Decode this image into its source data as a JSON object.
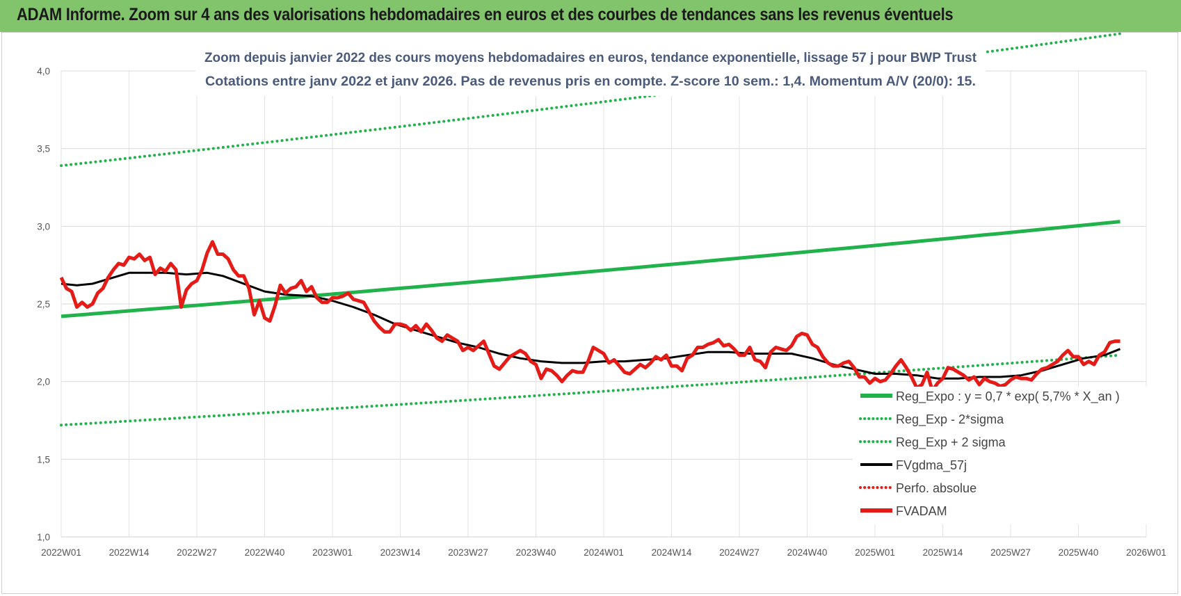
{
  "header": {
    "title": "ADAM Informe. Zoom sur 4 ans des valorisations hebdomadaires en euros et des courbes de tendances sans les revenus éventuels"
  },
  "chart_data": {
    "type": "line",
    "subtitle_line1": "Zoom depuis janvier 2022 des cours moyens hebdomadaires en euros, tendance exponentielle, lissage 57 j pour BWP Trust",
    "subtitle_line2": "Cotations entre janv 2022 et janv 2026. Pas de revenus pris en compte. Z-score 10 sem.: 1,4. Momentum A/V (20/0): 15.",
    "ylim": [
      1.0,
      4.0
    ],
    "y_ticks": [
      "1,0",
      "1,5",
      "2,0",
      "2,5",
      "3,0",
      "3,5",
      "4,0"
    ],
    "x_ticks": [
      "2022W01",
      "2022W14",
      "2022W27",
      "2022W40",
      "2023W01",
      "2023W14",
      "2023W27",
      "2023W40",
      "2024W01",
      "2024W14",
      "2024W27",
      "2024W40",
      "2025W01",
      "2025W14",
      "2025W27",
      "2025W40",
      "2026W01"
    ],
    "grid": true,
    "legend_position": "right",
    "series": [
      {
        "name": "Reg_Expo : y = 0,7 * exp( 5,7% *  X_an )",
        "color": "#22b24c",
        "style": "solid",
        "start": 2.42,
        "end": 3.03
      },
      {
        "name": "Reg_Exp - 2*sigma",
        "color": "#22b24c",
        "style": "dotted",
        "start": 1.72,
        "end": 2.17
      },
      {
        "name": "Reg_Exp + 2 sigma",
        "color": "#22b24c",
        "style": "dotted",
        "start": 3.39,
        "end": 4.24
      },
      {
        "name": "FVgdma_57j",
        "color": "#000000",
        "style": "solid",
        "points": [
          [
            0,
            2.63
          ],
          [
            3,
            2.62
          ],
          [
            6,
            2.63
          ],
          [
            9,
            2.66
          ],
          [
            13,
            2.7
          ],
          [
            20,
            2.7
          ],
          [
            24,
            2.69
          ],
          [
            28,
            2.7
          ],
          [
            31,
            2.68
          ],
          [
            35,
            2.63
          ],
          [
            39,
            2.58
          ],
          [
            43,
            2.56
          ],
          [
            48,
            2.55
          ],
          [
            52,
            2.52
          ],
          [
            56,
            2.48
          ],
          [
            60,
            2.43
          ],
          [
            64,
            2.37
          ],
          [
            68,
            2.33
          ],
          [
            72,
            2.29
          ],
          [
            76,
            2.25
          ],
          [
            80,
            2.22
          ],
          [
            84,
            2.18
          ],
          [
            88,
            2.15
          ],
          [
            92,
            2.13
          ],
          [
            96,
            2.12
          ],
          [
            100,
            2.12
          ],
          [
            104,
            2.13
          ],
          [
            108,
            2.13
          ],
          [
            112,
            2.14
          ],
          [
            116,
            2.15
          ],
          [
            120,
            2.17
          ],
          [
            124,
            2.19
          ],
          [
            128,
            2.19
          ],
          [
            132,
            2.18
          ],
          [
            136,
            2.18
          ],
          [
            140,
            2.18
          ],
          [
            144,
            2.15
          ],
          [
            148,
            2.11
          ],
          [
            152,
            2.08
          ],
          [
            156,
            2.05
          ],
          [
            160,
            2.05
          ],
          [
            164,
            2.04
          ],
          [
            168,
            2.02
          ],
          [
            172,
            2.02
          ],
          [
            176,
            2.03
          ],
          [
            180,
            2.03
          ],
          [
            184,
            2.04
          ],
          [
            188,
            2.07
          ],
          [
            192,
            2.11
          ],
          [
            196,
            2.15
          ],
          [
            200,
            2.17
          ],
          [
            203,
            2.21
          ]
        ]
      },
      {
        "name": "Perfo. absolue",
        "color": "#e41b17",
        "style": "dotted",
        "points": []
      },
      {
        "name": "FVADAM",
        "color": "#e41b17",
        "style": "solid",
        "points": [
          [
            0,
            2.67
          ],
          [
            1,
            2.6
          ],
          [
            2,
            2.58
          ],
          [
            3,
            2.48
          ],
          [
            4,
            2.51
          ],
          [
            5,
            2.48
          ],
          [
            6,
            2.5
          ],
          [
            7,
            2.57
          ],
          [
            8,
            2.6
          ],
          [
            9,
            2.67
          ],
          [
            10,
            2.72
          ],
          [
            11,
            2.76
          ],
          [
            12,
            2.75
          ],
          [
            13,
            2.8
          ],
          [
            14,
            2.79
          ],
          [
            15,
            2.82
          ],
          [
            16,
            2.78
          ],
          [
            17,
            2.8
          ],
          [
            18,
            2.69
          ],
          [
            19,
            2.73
          ],
          [
            20,
            2.71
          ],
          [
            21,
            2.76
          ],
          [
            22,
            2.72
          ],
          [
            23,
            2.48
          ],
          [
            24,
            2.59
          ],
          [
            25,
            2.63
          ],
          [
            26,
            2.65
          ],
          [
            27,
            2.72
          ],
          [
            28,
            2.83
          ],
          [
            29,
            2.9
          ],
          [
            30,
            2.82
          ],
          [
            31,
            2.82
          ],
          [
            32,
            2.79
          ],
          [
            33,
            2.72
          ],
          [
            34,
            2.68
          ],
          [
            35,
            2.68
          ],
          [
            36,
            2.6
          ],
          [
            37,
            2.43
          ],
          [
            38,
            2.52
          ],
          [
            39,
            2.41
          ],
          [
            40,
            2.39
          ],
          [
            41,
            2.49
          ],
          [
            42,
            2.62
          ],
          [
            43,
            2.57
          ],
          [
            44,
            2.6
          ],
          [
            45,
            2.61
          ],
          [
            46,
            2.65
          ],
          [
            47,
            2.58
          ],
          [
            48,
            2.61
          ],
          [
            49,
            2.54
          ],
          [
            50,
            2.51
          ],
          [
            51,
            2.51
          ],
          [
            52,
            2.54
          ],
          [
            53,
            2.54
          ],
          [
            54,
            2.55
          ],
          [
            55,
            2.57
          ],
          [
            56,
            2.53
          ],
          [
            57,
            2.52
          ],
          [
            58,
            2.51
          ],
          [
            59,
            2.45
          ],
          [
            60,
            2.39
          ],
          [
            61,
            2.35
          ],
          [
            62,
            2.32
          ],
          [
            63,
            2.32
          ],
          [
            64,
            2.37
          ],
          [
            65,
            2.37
          ],
          [
            66,
            2.36
          ],
          [
            67,
            2.33
          ],
          [
            68,
            2.36
          ],
          [
            69,
            2.32
          ],
          [
            70,
            2.37
          ],
          [
            71,
            2.33
          ],
          [
            72,
            2.28
          ],
          [
            73,
            2.26
          ],
          [
            74,
            2.3
          ],
          [
            75,
            2.28
          ],
          [
            76,
            2.26
          ],
          [
            77,
            2.2
          ],
          [
            78,
            2.22
          ],
          [
            79,
            2.2
          ],
          [
            80,
            2.23
          ],
          [
            81,
            2.26
          ],
          [
            82,
            2.18
          ],
          [
            83,
            2.1
          ],
          [
            84,
            2.08
          ],
          [
            85,
            2.12
          ],
          [
            86,
            2.16
          ],
          [
            87,
            2.18
          ],
          [
            88,
            2.2
          ],
          [
            89,
            2.18
          ],
          [
            90,
            2.13
          ],
          [
            91,
            2.11
          ],
          [
            92,
            2.02
          ],
          [
            93,
            2.08
          ],
          [
            94,
            2.07
          ],
          [
            95,
            2.04
          ],
          [
            96,
            2.0
          ],
          [
            97,
            2.04
          ],
          [
            98,
            2.07
          ],
          [
            99,
            2.06
          ],
          [
            100,
            2.06
          ],
          [
            101,
            2.13
          ],
          [
            102,
            2.22
          ],
          [
            103,
            2.2
          ],
          [
            104,
            2.18
          ],
          [
            105,
            2.12
          ],
          [
            106,
            2.14
          ],
          [
            107,
            2.1
          ],
          [
            108,
            2.06
          ],
          [
            109,
            2.05
          ],
          [
            110,
            2.08
          ],
          [
            111,
            2.11
          ],
          [
            112,
            2.09
          ],
          [
            113,
            2.12
          ],
          [
            114,
            2.16
          ],
          [
            115,
            2.14
          ],
          [
            116,
            2.17
          ],
          [
            117,
            2.1
          ],
          [
            118,
            2.1
          ],
          [
            119,
            2.07
          ],
          [
            120,
            2.15
          ],
          [
            121,
            2.17
          ],
          [
            122,
            2.22
          ],
          [
            123,
            2.22
          ],
          [
            124,
            2.24
          ],
          [
            125,
            2.25
          ],
          [
            126,
            2.27
          ],
          [
            127,
            2.23
          ],
          [
            128,
            2.24
          ],
          [
            129,
            2.21
          ],
          [
            130,
            2.17
          ],
          [
            131,
            2.17
          ],
          [
            132,
            2.22
          ],
          [
            133,
            2.14
          ],
          [
            134,
            2.13
          ],
          [
            135,
            2.09
          ],
          [
            136,
            2.19
          ],
          [
            137,
            2.22
          ],
          [
            138,
            2.21
          ],
          [
            139,
            2.2
          ],
          [
            140,
            2.23
          ],
          [
            141,
            2.29
          ],
          [
            142,
            2.31
          ],
          [
            143,
            2.3
          ],
          [
            144,
            2.24
          ],
          [
            145,
            2.22
          ],
          [
            146,
            2.16
          ],
          [
            147,
            2.12
          ],
          [
            148,
            2.1
          ],
          [
            149,
            2.1
          ],
          [
            150,
            2.12
          ],
          [
            151,
            2.13
          ],
          [
            152,
            2.09
          ],
          [
            153,
            2.03
          ],
          [
            154,
            2.03
          ],
          [
            155,
            1.99
          ],
          [
            156,
            2.02
          ],
          [
            157,
            2.0
          ],
          [
            158,
            2.01
          ],
          [
            159,
            2.05
          ],
          [
            160,
            2.1
          ],
          [
            161,
            2.14
          ],
          [
            162,
            2.09
          ],
          [
            163,
            2.03
          ],
          [
            164,
            1.96
          ],
          [
            165,
            1.98
          ],
          [
            166,
            2.06
          ],
          [
            167,
            1.94
          ],
          [
            168,
            1.99
          ],
          [
            169,
            2.02
          ],
          [
            170,
            2.09
          ],
          [
            171,
            2.08
          ],
          [
            172,
            2.06
          ],
          [
            173,
            2.04
          ],
          [
            174,
            2.01
          ],
          [
            175,
            2.03
          ],
          [
            176,
            1.98
          ],
          [
            177,
            2.02
          ],
          [
            178,
            2.0
          ],
          [
            179,
            1.99
          ],
          [
            180,
            1.97
          ],
          [
            181,
            1.98
          ],
          [
            182,
            2.01
          ],
          [
            183,
            2.03
          ],
          [
            184,
            2.02
          ],
          [
            185,
            2.02
          ],
          [
            186,
            2.01
          ],
          [
            187,
            2.05
          ],
          [
            188,
            2.08
          ],
          [
            189,
            2.09
          ],
          [
            190,
            2.11
          ],
          [
            191,
            2.13
          ],
          [
            192,
            2.17
          ],
          [
            193,
            2.2
          ],
          [
            194,
            2.16
          ],
          [
            195,
            2.16
          ],
          [
            196,
            2.11
          ],
          [
            197,
            2.13
          ],
          [
            198,
            2.11
          ],
          [
            199,
            2.17
          ],
          [
            200,
            2.19
          ],
          [
            201,
            2.25
          ],
          [
            202,
            2.26
          ],
          [
            203,
            2.26
          ]
        ]
      }
    ]
  }
}
